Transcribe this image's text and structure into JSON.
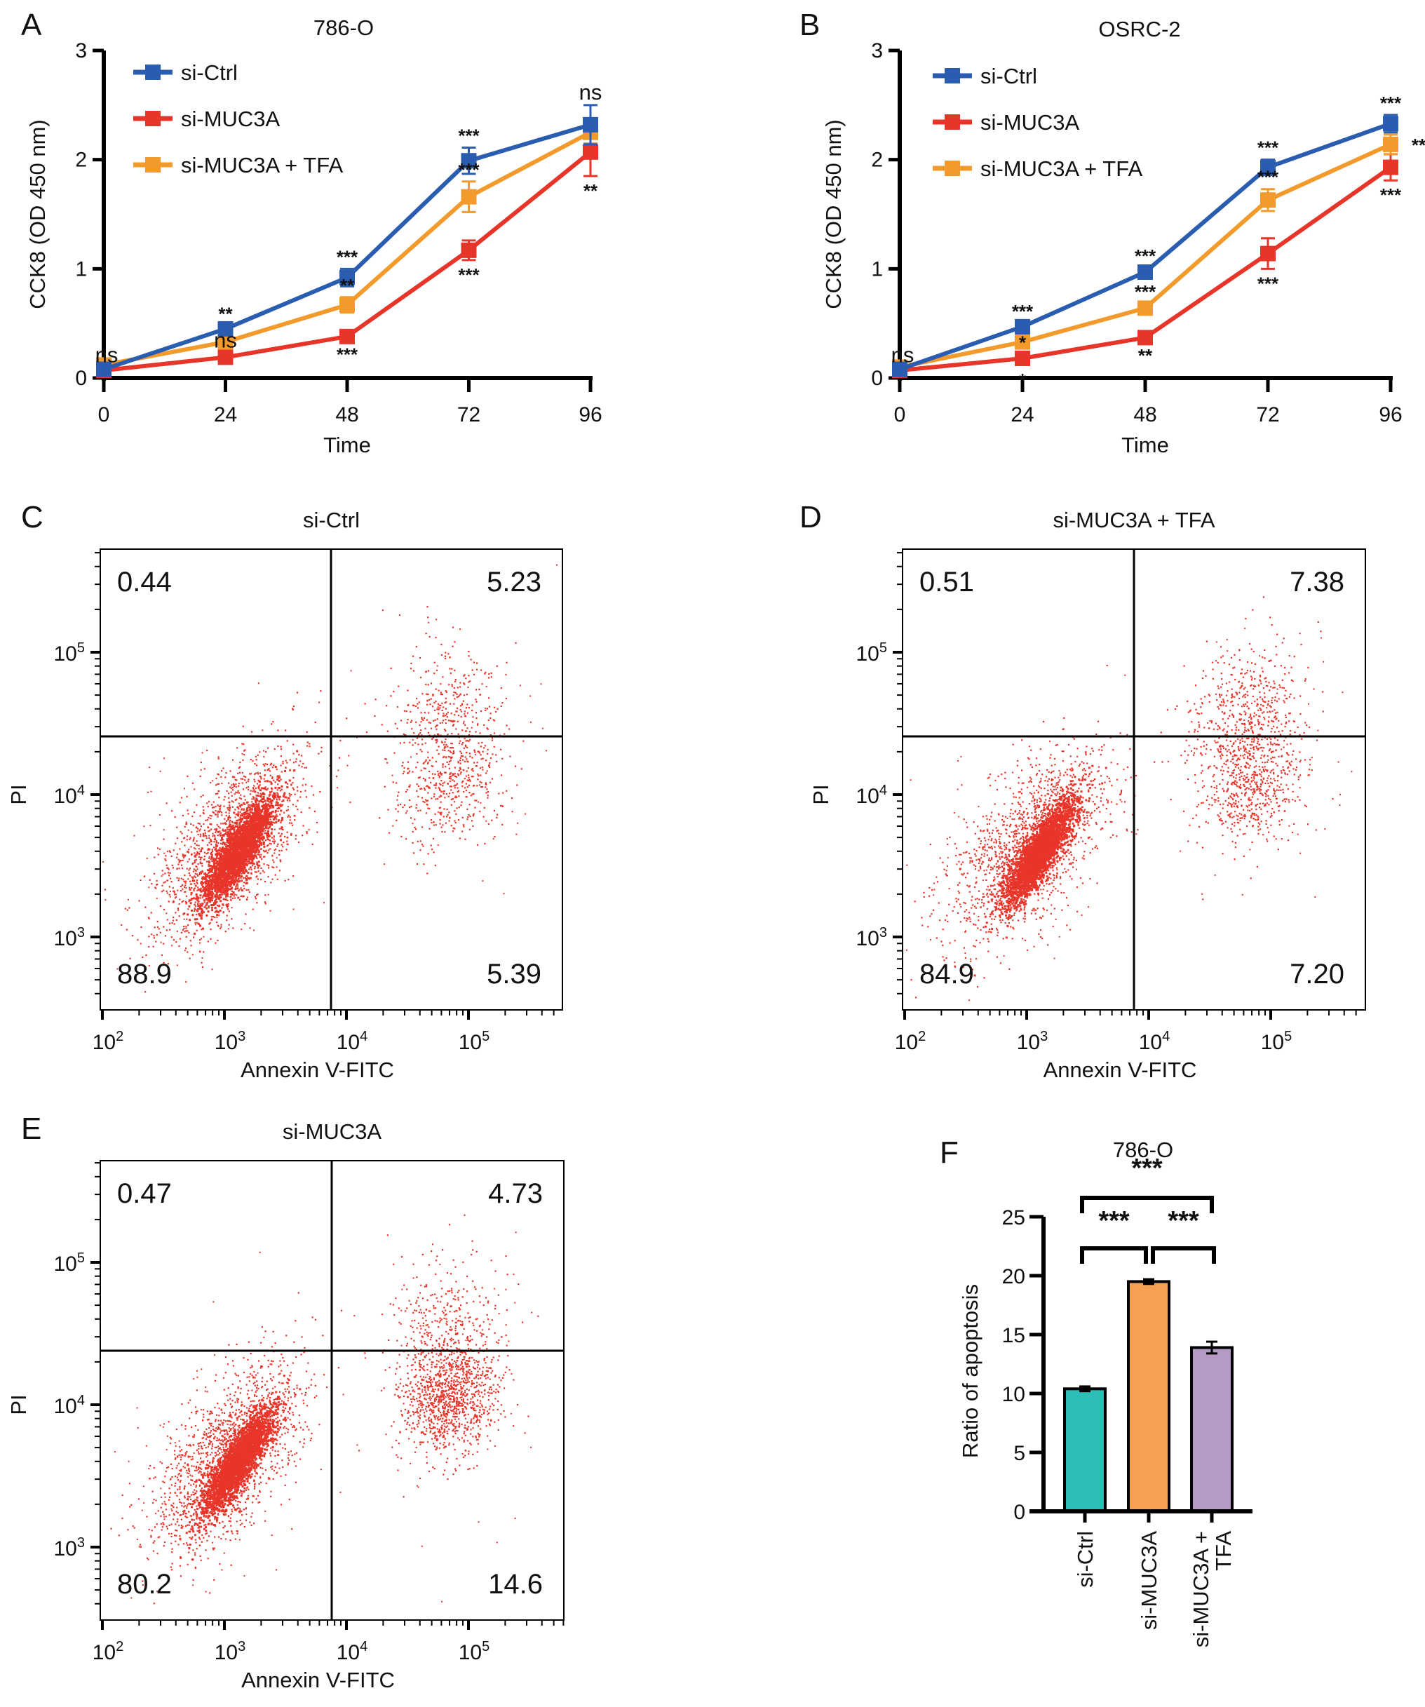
{
  "chart_data": [
    {
      "id": "A",
      "type": "line",
      "panel_label": "A",
      "title": "786-O",
      "xlabel": "Time",
      "ylabel": "CCK8 (OD 450 nm)",
      "x": [
        0,
        24,
        48,
        72,
        96
      ],
      "xlim": [
        0,
        96
      ],
      "ylim": [
        0,
        3
      ],
      "yticks": [
        0,
        1,
        2,
        3
      ],
      "legend_position": "top-left",
      "series": [
        {
          "name": "si-Ctrl",
          "color": "#2a5db0",
          "values": [
            0.08,
            0.45,
            0.92,
            1.99,
            2.32
          ],
          "errors": [
            0.03,
            0.03,
            0.08,
            0.12,
            0.18
          ],
          "annotations": [
            "ns",
            "**",
            "***",
            "***",
            "ns"
          ]
        },
        {
          "name": "si-MUC3A",
          "color": "#e8352a",
          "values": [
            0.07,
            0.19,
            0.38,
            1.17,
            2.07
          ],
          "errors": [
            0.02,
            0.03,
            0.03,
            0.09,
            0.22
          ],
          "annotations": [
            "",
            "ns",
            "***",
            "***",
            "**"
          ]
        },
        {
          "name": "si-MUC3A + TFA",
          "color": "#f39a2c",
          "values": [
            0.12,
            0.33,
            0.67,
            1.66,
            2.25
          ],
          "errors": [
            0.03,
            0.03,
            0.07,
            0.14,
            0.1
          ],
          "annotations": [
            "",
            "",
            "**",
            "***",
            ""
          ]
        }
      ]
    },
    {
      "id": "B",
      "type": "line",
      "panel_label": "B",
      "title": "OSRC-2",
      "xlabel": "Time",
      "ylabel": "CCK8 (OD 450 nm)",
      "x": [
        0,
        24,
        48,
        72,
        96
      ],
      "xlim": [
        0,
        96
      ],
      "ylim": [
        0,
        3
      ],
      "yticks": [
        0,
        1,
        2,
        3
      ],
      "legend_position": "top-left",
      "series": [
        {
          "name": "si-Ctrl",
          "color": "#2a5db0",
          "values": [
            0.08,
            0.47,
            0.97,
            1.93,
            2.33
          ],
          "errors": [
            0.02,
            0.03,
            0.04,
            0.07,
            0.08
          ],
          "annotations": [
            "ns",
            "***",
            "***",
            "***",
            "***"
          ]
        },
        {
          "name": "si-MUC3A",
          "color": "#e8352a",
          "values": [
            0.07,
            0.18,
            0.37,
            1.14,
            1.93
          ],
          "errors": [
            0.02,
            0.03,
            0.03,
            0.14,
            0.12
          ],
          "annotations": [
            "",
            "*",
            "**",
            "***",
            "***"
          ]
        },
        {
          "name": "si-MUC3A + TFA",
          "color": "#f39a2c",
          "values": [
            0.1,
            0.33,
            0.64,
            1.63,
            2.14
          ],
          "errors": [
            0.02,
            0.03,
            0.04,
            0.1,
            0.09
          ],
          "annotations": [
            "",
            "*",
            "***",
            "***",
            "**"
          ]
        }
      ]
    },
    {
      "id": "C",
      "type": "scatter",
      "panel_label": "C",
      "title": "si-Ctrl",
      "xlabel": "Annexin V-FITC",
      "ylabel": "PI",
      "xscale": "log",
      "yscale": "log",
      "xticks": [
        "10^2",
        "10^3",
        "10^4",
        "10^5"
      ],
      "yticks": [
        "10^3",
        "10^4",
        "10^5"
      ],
      "quadrants": {
        "upper_left": "0.44",
        "upper_right": "5.23",
        "lower_left": "88.9",
        "lower_right": "5.39"
      },
      "point_color": "#e8352a"
    },
    {
      "id": "D",
      "type": "scatter",
      "panel_label": "D",
      "title": "si-MUC3A + TFA",
      "xlabel": "Annexin V-FITC",
      "ylabel": "PI",
      "xscale": "log",
      "yscale": "log",
      "xticks": [
        "10^2",
        "10^3",
        "10^4",
        "10^5"
      ],
      "yticks": [
        "10^3",
        "10^4",
        "10^5"
      ],
      "quadrants": {
        "upper_left": "0.51",
        "upper_right": "7.38",
        "lower_left": "84.9",
        "lower_right": "7.20"
      },
      "point_color": "#e8352a"
    },
    {
      "id": "E",
      "type": "scatter",
      "panel_label": "E",
      "title": "si-MUC3A",
      "xlabel": "Annexin V-FITC",
      "ylabel": "PI",
      "xscale": "log",
      "yscale": "log",
      "xticks": [
        "10^2",
        "10^3",
        "10^4",
        "10^5"
      ],
      "yticks": [
        "10^3",
        "10^4",
        "10^5"
      ],
      "quadrants": {
        "upper_left": "0.47",
        "upper_right": "4.73",
        "lower_left": "80.2",
        "lower_right": "14.6"
      },
      "point_color": "#e8352a"
    },
    {
      "id": "F",
      "type": "bar",
      "panel_label": "F",
      "title": "786-O",
      "xlabel": "",
      "ylabel": "Ratio of apoptosis",
      "categories": [
        "si-Ctrl",
        "si-MUC3A",
        "si-MUC3A + TFA"
      ],
      "category_lines": [
        [
          "si-Ctrl"
        ],
        [
          "si-MUC3A"
        ],
        [
          "si-MUC3A +",
          "TFA"
        ]
      ],
      "values": [
        10.4,
        19.5,
        13.9
      ],
      "errors": [
        0.2,
        0.2,
        0.5
      ],
      "colors": [
        "#2bbdb6",
        "#f5a052",
        "#b39bc6"
      ],
      "ylim": [
        0,
        25
      ],
      "yticks": [
        0,
        5,
        10,
        15,
        20,
        25
      ],
      "comparisons": [
        {
          "pair": [
            0,
            1
          ],
          "label": "***"
        },
        {
          "pair": [
            1,
            2
          ],
          "label": "***"
        },
        {
          "pair": [
            0,
            2
          ],
          "label": "***"
        }
      ]
    }
  ]
}
